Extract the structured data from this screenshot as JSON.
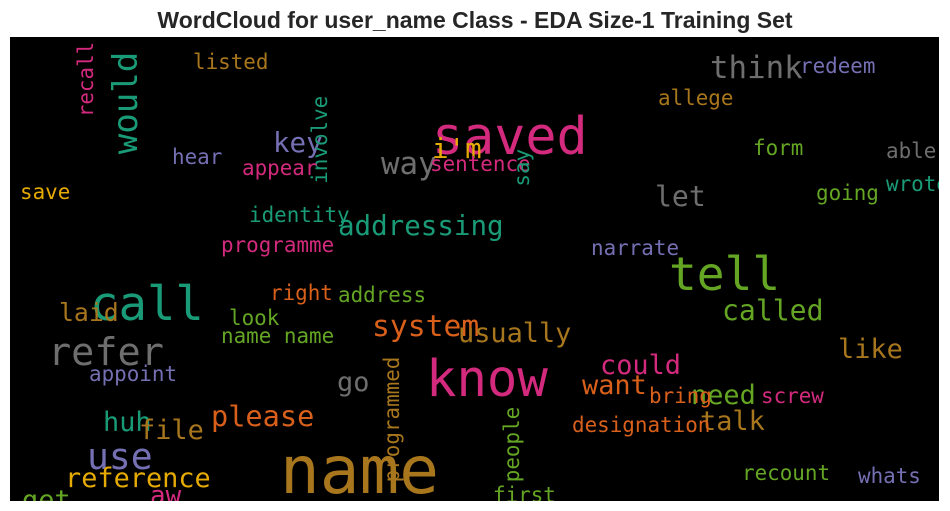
{
  "chart_data": {
    "type": "wordcloud",
    "title": "WordCloud for user_name Class - EDA Size-1 Training Set",
    "background": "#000000",
    "palette": {
      "orange": "#b66a16",
      "olive": "#a8761d",
      "pink": "#d42a7e",
      "green": "#64a624",
      "teal": "#1a9b77",
      "purple": "#7570b3",
      "gray": "#6e6e6e",
      "darkorange": "#d9601b",
      "gold": "#e6ab02"
    },
    "words": [
      {
        "text": "name",
        "weight": 1.0,
        "color": "olive",
        "rotate": false
      },
      {
        "text": "saved",
        "weight": 0.74,
        "color": "pink",
        "rotate": false
      },
      {
        "text": "know",
        "weight": 0.72,
        "color": "pink",
        "rotate": false
      },
      {
        "text": "call",
        "weight": 0.66,
        "color": "teal",
        "rotate": false
      },
      {
        "text": "tell",
        "weight": 0.64,
        "color": "green",
        "rotate": false
      },
      {
        "text": "refer",
        "weight": 0.5,
        "color": "gray",
        "rotate": false
      },
      {
        "text": "use",
        "weight": 0.46,
        "color": "purple",
        "rotate": false
      },
      {
        "text": "would",
        "weight": 0.42,
        "color": "teal",
        "rotate": true
      },
      {
        "text": "think",
        "weight": 0.36,
        "color": "gray",
        "rotate": false
      },
      {
        "text": "way",
        "weight": 0.36,
        "color": "gray",
        "rotate": false
      },
      {
        "text": "system",
        "weight": 0.34,
        "color": "darkorange",
        "rotate": false
      },
      {
        "text": "please",
        "weight": 0.32,
        "color": "darkorange",
        "rotate": false
      },
      {
        "text": "called",
        "weight": 0.31,
        "color": "green",
        "rotate": false
      },
      {
        "text": "let",
        "weight": 0.31,
        "color": "gray",
        "rotate": false
      },
      {
        "text": "addressing",
        "weight": 0.3,
        "color": "teal",
        "rotate": false
      },
      {
        "text": "key",
        "weight": 0.3,
        "color": "purple",
        "rotate": false
      },
      {
        "text": "i'm",
        "weight": 0.3,
        "color": "gold",
        "rotate": false
      },
      {
        "text": "usually",
        "weight": 0.29,
        "color": "olive",
        "rotate": false
      },
      {
        "text": "like",
        "weight": 0.29,
        "color": "olive",
        "rotate": false
      },
      {
        "text": "could",
        "weight": 0.29,
        "color": "pink",
        "rotate": false
      },
      {
        "text": "want",
        "weight": 0.29,
        "color": "darkorange",
        "rotate": false
      },
      {
        "text": "need",
        "weight": 0.29,
        "color": "green",
        "rotate": false
      },
      {
        "text": "talk",
        "weight": 0.29,
        "color": "olive",
        "rotate": false
      },
      {
        "text": "go",
        "weight": 0.29,
        "color": "gray",
        "rotate": false
      },
      {
        "text": "huh",
        "weight": 0.29,
        "color": "teal",
        "rotate": false
      },
      {
        "text": "file",
        "weight": 0.29,
        "color": "olive",
        "rotate": false
      },
      {
        "text": "reference",
        "weight": 0.29,
        "color": "gold",
        "rotate": false
      },
      {
        "text": "get",
        "weight": 0.29,
        "color": "green",
        "rotate": false
      },
      {
        "text": "aw",
        "weight": 0.27,
        "color": "pink",
        "rotate": false
      },
      {
        "text": "laid",
        "weight": 0.25,
        "color": "olive",
        "rotate": false
      },
      {
        "text": "save",
        "weight": 0.18,
        "color": "gold",
        "rotate": false
      },
      {
        "text": "listed",
        "weight": 0.18,
        "color": "olive",
        "rotate": false
      },
      {
        "text": "recall",
        "weight": 0.18,
        "color": "pink",
        "rotate": true
      },
      {
        "text": "involve",
        "weight": 0.18,
        "color": "teal",
        "rotate": true
      },
      {
        "text": "redeem",
        "weight": 0.18,
        "color": "purple",
        "rotate": false
      },
      {
        "text": "allege",
        "weight": 0.18,
        "color": "olive",
        "rotate": false
      },
      {
        "text": "form",
        "weight": 0.18,
        "color": "green",
        "rotate": false
      },
      {
        "text": "able",
        "weight": 0.18,
        "color": "gray",
        "rotate": false
      },
      {
        "text": "hear",
        "weight": 0.18,
        "color": "purple",
        "rotate": false
      },
      {
        "text": "appear",
        "weight": 0.18,
        "color": "pink",
        "rotate": false
      },
      {
        "text": "sentence",
        "weight": 0.18,
        "color": "pink",
        "rotate": false
      },
      {
        "text": "say",
        "weight": 0.18,
        "color": "teal",
        "rotate": true
      },
      {
        "text": "going",
        "weight": 0.18,
        "color": "green",
        "rotate": false
      },
      {
        "text": "wrote",
        "weight": 0.18,
        "color": "teal",
        "rotate": false
      },
      {
        "text": "identity",
        "weight": 0.18,
        "color": "teal",
        "rotate": false
      },
      {
        "text": "programme",
        "weight": 0.18,
        "color": "pink",
        "rotate": false
      },
      {
        "text": "narrate",
        "weight": 0.18,
        "color": "purple",
        "rotate": false
      },
      {
        "text": "right",
        "weight": 0.18,
        "color": "darkorange",
        "rotate": false
      },
      {
        "text": "address",
        "weight": 0.18,
        "color": "green",
        "rotate": false
      },
      {
        "text": "look",
        "weight": 0.18,
        "color": "green",
        "rotate": false
      },
      {
        "text": "name name",
        "weight": 0.18,
        "color": "green",
        "rotate": false
      },
      {
        "text": "appoint",
        "weight": 0.18,
        "color": "purple",
        "rotate": false
      },
      {
        "text": "programmed",
        "weight": 0.18,
        "color": "olive",
        "rotate": true
      },
      {
        "text": "bring",
        "weight": 0.18,
        "color": "darkorange",
        "rotate": false
      },
      {
        "text": "screw",
        "weight": 0.18,
        "color": "pink",
        "rotate": false
      },
      {
        "text": "designation",
        "weight": 0.18,
        "color": "darkorange",
        "rotate": false
      },
      {
        "text": "people",
        "weight": 0.18,
        "color": "green",
        "rotate": true
      },
      {
        "text": "recount",
        "weight": 0.18,
        "color": "green",
        "rotate": false
      },
      {
        "text": "whats",
        "weight": 0.18,
        "color": "purple",
        "rotate": false
      },
      {
        "text": "first",
        "weight": 0.18,
        "color": "green",
        "rotate": false
      }
    ]
  }
}
